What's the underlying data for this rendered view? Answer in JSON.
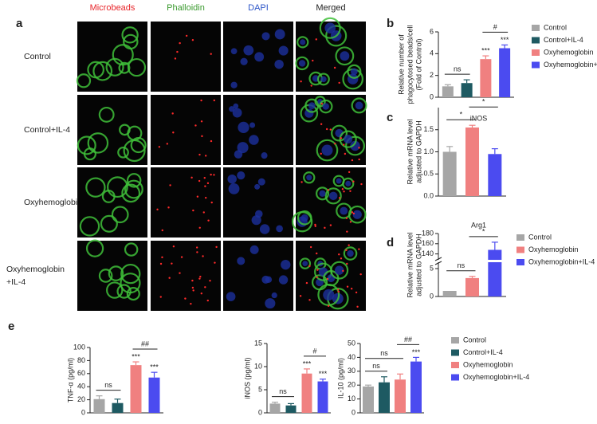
{
  "panel_a": {
    "letter": "a",
    "columns": [
      {
        "label": "Microbeads",
        "color": "#e8262b"
      },
      {
        "label": "Phalloidin",
        "color": "#3a9a2e"
      },
      {
        "label": "DAPI",
        "color": "#2c55c8"
      },
      {
        "label": "Merged",
        "color": "#222222"
      }
    ],
    "rows": [
      [
        "Control"
      ],
      [
        "Control+IL-4"
      ],
      [
        "Oxyhemoglobin"
      ],
      [
        "Oxyhemoglobin",
        "+IL-4"
      ]
    ]
  },
  "chart_data": [
    {
      "panel": "b",
      "type": "bar",
      "ylabel": [
        "Relative number of",
        "phagocytosed beads/cell",
        "(Fold of Control)"
      ],
      "categories": [
        "Control",
        "Control+IL-4",
        "Oxyhemoglobin",
        "Oxyhemoglobin+IL-4"
      ],
      "values": [
        1.0,
        1.3,
        3.5,
        4.5
      ],
      "errors": [
        0.15,
        0.3,
        0.3,
        0.3
      ],
      "colors": [
        "#a6a6a6",
        "#1e5a62",
        "#f08080",
        "#4b4bf0"
      ],
      "ylim": [
        0,
        6
      ],
      "yticks": [
        0,
        2,
        4,
        6
      ],
      "legend": "right",
      "annotations": [
        {
          "text": "ns",
          "from": 0,
          "to": 1
        },
        {
          "text": "***",
          "from": 2,
          "to": 2
        },
        {
          "text": "***",
          "from": 3,
          "to": 3
        },
        {
          "text": "#",
          "from": 2,
          "to": 3
        }
      ]
    },
    {
      "panel": "c",
      "type": "bar",
      "title": "iNOS",
      "ylabel": [
        "Relative mRNA level",
        "adjusted to GAPDH"
      ],
      "categories": [
        null,
        null,
        null
      ],
      "values": [
        1.0,
        1.55,
        0.95
      ],
      "errors": [
        0.12,
        0.05,
        0.12
      ],
      "colors": [
        "#a6a6a6",
        "#f08080",
        "#4b4bf0"
      ],
      "ylim": [
        0,
        2.0
      ],
      "yticks": [
        {
          "value": 0,
          "label": "0.0"
        },
        {
          "value": 0.5,
          "label": "0.5"
        },
        {
          "value": 1.0,
          "label": "1.0"
        },
        {
          "value": 1.5,
          "label": "1.5"
        }
      ],
      "annotations": [
        {
          "text": "*",
          "from": 0,
          "to": 1
        },
        {
          "text": "*",
          "from": 1,
          "to": 2
        }
      ]
    },
    {
      "panel": "d",
      "type": "bar",
      "title": "Arg1",
      "ylabel": [
        "Relative mRNA level",
        "adjusted to GAPDH"
      ],
      "categories": [
        "Control",
        "Oxyhemoglobin",
        "Oxyhemoglobin+IL-4"
      ],
      "values": [
        1,
        3.3,
        148
      ],
      "errors": [
        0,
        0.3,
        15
      ],
      "colors": [
        "#a6a6a6",
        "#f08080",
        "#4b4bf0"
      ],
      "ylim": [
        0,
        180
      ],
      "ybreak": [
        6,
        130
      ],
      "yticks": [
        0,
        5,
        140,
        160,
        180
      ],
      "legend": "right",
      "annotations": [
        {
          "text": "ns",
          "from": 0,
          "to": 1
        },
        {
          "text": "*",
          "from": 1,
          "to": 2
        }
      ]
    },
    {
      "panel": "e",
      "type": "bar",
      "ylabel": [
        "TNF-α (pg/ml)"
      ],
      "categories": [
        null,
        null,
        null,
        null
      ],
      "values": [
        21,
        15,
        73,
        54
      ],
      "errors": [
        5,
        6,
        5,
        8
      ],
      "colors": [
        "#a6a6a6",
        "#1e5a62",
        "#f08080",
        "#4b4bf0"
      ],
      "ylim": [
        0,
        100
      ],
      "yticks": [
        0,
        20,
        40,
        60,
        80,
        100
      ],
      "annotations": [
        {
          "text": "ns",
          "from": 0,
          "to": 1
        },
        {
          "text": "***",
          "from": 2,
          "to": 2
        },
        {
          "text": "***",
          "from": 3,
          "to": 3
        },
        {
          "text": "##",
          "from": 2,
          "to": 3
        }
      ]
    },
    {
      "type": "bar",
      "ylabel": [
        "iNOS (pg/ml)"
      ],
      "categories": [
        null,
        null,
        null,
        null
      ],
      "values": [
        2.0,
        1.6,
        8.5,
        6.8
      ],
      "errors": [
        0.3,
        0.4,
        1.0,
        0.5
      ],
      "colors": [
        "#a6a6a6",
        "#1e5a62",
        "#f08080",
        "#4b4bf0"
      ],
      "ylim": [
        0,
        15
      ],
      "yticks": [
        0,
        5,
        10,
        15
      ],
      "annotations": [
        {
          "text": "ns",
          "from": 0,
          "to": 1
        },
        {
          "text": "***",
          "from": 2,
          "to": 2
        },
        {
          "text": "***",
          "from": 3,
          "to": 3
        },
        {
          "text": "#",
          "from": 2,
          "to": 3
        }
      ]
    },
    {
      "type": "bar",
      "ylabel": [
        "IL-10 (pg/ml)"
      ],
      "categories": [
        "Control",
        "Control+IL-4",
        "Oxyhemoglobin",
        "Oxyhemoglobin+IL-4"
      ],
      "values": [
        19,
        22,
        24,
        37
      ],
      "errors": [
        1,
        4,
        4,
        3
      ],
      "colors": [
        "#a6a6a6",
        "#1e5a62",
        "#f08080",
        "#4b4bf0"
      ],
      "ylim": [
        0,
        50
      ],
      "yticks": [
        0,
        10,
        20,
        30,
        40,
        50
      ],
      "legend": "right",
      "annotations": [
        {
          "text": "ns",
          "from": 0,
          "to": 1
        },
        {
          "text": "ns",
          "from": 0,
          "to": 2
        },
        {
          "text": "***",
          "from": 3,
          "to": 3
        },
        {
          "text": "##",
          "from": 2,
          "to": 3
        }
      ]
    }
  ]
}
